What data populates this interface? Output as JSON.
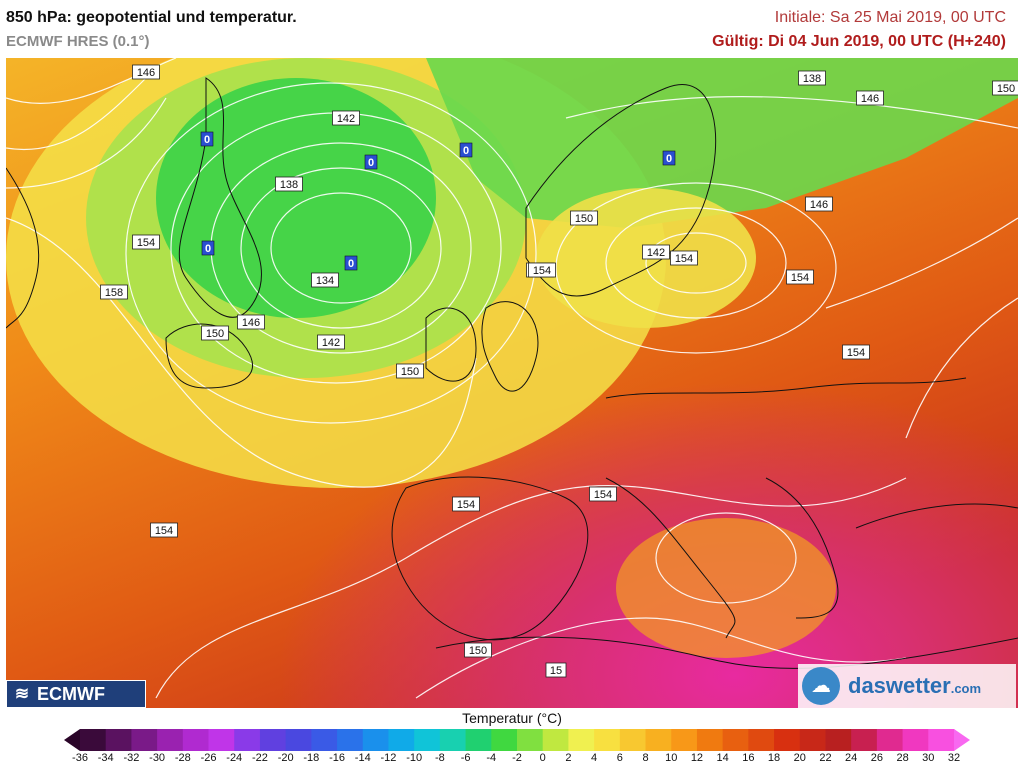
{
  "header": {
    "title": "850 hPa: geopotential und temperatur.",
    "subtitle": "ECMWF HRES (0.1°)",
    "initial": "Initiale: Sa 25 Mai 2019, 00 UTC",
    "valid": "Gültig: Di 04 Jun 2019, 00 UTC (H+240)"
  },
  "map": {
    "contour_labels": [
      "146",
      "142",
      "138",
      "154",
      "158",
      "134",
      "150",
      "146",
      "142",
      "150",
      "154",
      "138",
      "146",
      "150",
      "150",
      "146",
      "142",
      "154",
      "154",
      "154",
      "154",
      "154",
      "154",
      "154",
      "150",
      "15"
    ],
    "low_markers": [
      "0",
      "0",
      "0",
      "0",
      "0",
      "0"
    ]
  },
  "logos": {
    "ecmwf": "ECMWF",
    "daswetter_main": "daswetter",
    "daswetter_suffix": ".com"
  },
  "colorbar": {
    "title": "Temperatur (°C)",
    "ticks": [
      "-36",
      "-34",
      "-32",
      "-30",
      "-28",
      "-26",
      "-24",
      "-22",
      "-20",
      "-18",
      "-16",
      "-14",
      "-12",
      "-10",
      "-8",
      "-6",
      "-4",
      "-2",
      "0",
      "2",
      "4",
      "6",
      "8",
      "10",
      "12",
      "14",
      "16",
      "18",
      "20",
      "22",
      "24",
      "26",
      "28",
      "30",
      "32"
    ],
    "colors": [
      "#3a0a3a",
      "#5a1260",
      "#7a1a88",
      "#9a22b0",
      "#b02ad0",
      "#c035e8",
      "#8a3ae8",
      "#6040e0",
      "#4a48e0",
      "#3a5ae6",
      "#2a72ea",
      "#1a90ec",
      "#10aae8",
      "#10c4d8",
      "#18d0b0",
      "#20d070",
      "#40d840",
      "#80e040",
      "#c0e840",
      "#f0f050",
      "#f8e040",
      "#f8c830",
      "#f8b020",
      "#f89818",
      "#f07a10",
      "#e86010",
      "#e04a10",
      "#d83010",
      "#c82818",
      "#b82020",
      "#c82050",
      "#e02a90",
      "#f038c0",
      "#f850e0"
    ],
    "extreme_colors": [
      "#2a0428",
      "#f868f0"
    ]
  }
}
